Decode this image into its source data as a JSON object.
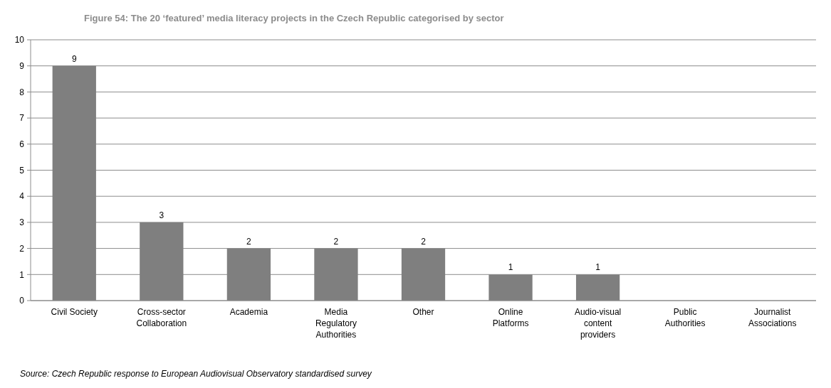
{
  "chart_data": {
    "type": "bar",
    "title": "Figure 54: The 20 ‘featured’ media literacy projects in the Czech Republic categorised by sector",
    "categories": [
      "Civil Society",
      "Cross-sector Collaboration",
      "Academia",
      "Media Regulatory Authorities",
      "Other",
      "Online Platforms",
      "Audio-visual content providers",
      "Public Authorities",
      "Journalist Associations"
    ],
    "values": [
      9,
      3,
      2,
      2,
      2,
      1,
      1,
      0,
      0
    ],
    "value_labels": [
      "9",
      "3",
      "2",
      "2",
      "2",
      "1",
      "1",
      null,
      null
    ],
    "color": "#7f7f7f",
    "ylim": [
      0,
      10
    ],
    "yticks": [
      0,
      1,
      2,
      3,
      4,
      5,
      6,
      7,
      8,
      9,
      10
    ],
    "grid": "y",
    "annotations": [
      "Source: Czech Republic response to European Audiovisual Observatory standardised survey"
    ]
  }
}
